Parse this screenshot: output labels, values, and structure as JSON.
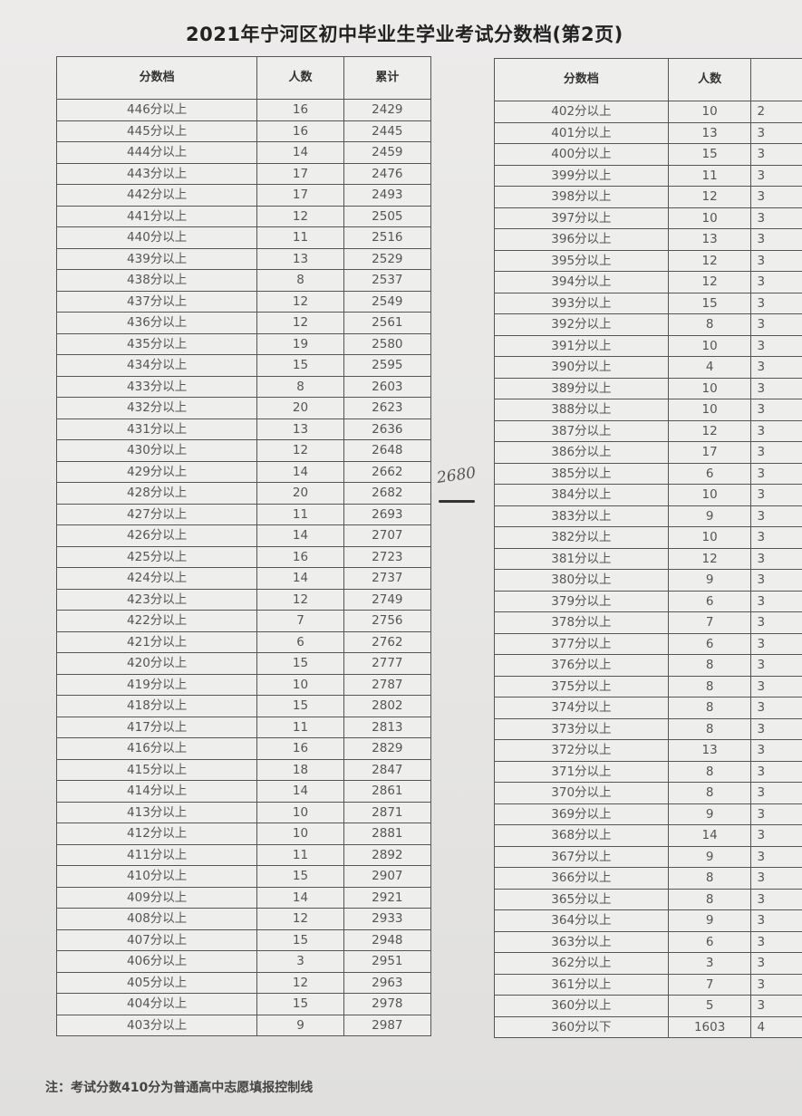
{
  "title": "2021年宁河区初中毕业生学业考试分数档(第2页)",
  "left_table": {
    "headers": [
      "分数档",
      "人数",
      "累计"
    ],
    "rows": [
      [
        "446分以上",
        "16",
        "2429"
      ],
      [
        "445分以上",
        "16",
        "2445"
      ],
      [
        "444分以上",
        "14",
        "2459"
      ],
      [
        "443分以上",
        "17",
        "2476"
      ],
      [
        "442分以上",
        "17",
        "2493"
      ],
      [
        "441分以上",
        "12",
        "2505"
      ],
      [
        "440分以上",
        "11",
        "2516"
      ],
      [
        "439分以上",
        "13",
        "2529"
      ],
      [
        "438分以上",
        "8",
        "2537"
      ],
      [
        "437分以上",
        "12",
        "2549"
      ],
      [
        "436分以上",
        "12",
        "2561"
      ],
      [
        "435分以上",
        "19",
        "2580"
      ],
      [
        "434分以上",
        "15",
        "2595"
      ],
      [
        "433分以上",
        "8",
        "2603"
      ],
      [
        "432分以上",
        "20",
        "2623"
      ],
      [
        "431分以上",
        "13",
        "2636"
      ],
      [
        "430分以上",
        "12",
        "2648"
      ],
      [
        "429分以上",
        "14",
        "2662"
      ],
      [
        "428分以上",
        "20",
        "2682"
      ],
      [
        "427分以上",
        "11",
        "2693"
      ],
      [
        "426分以上",
        "14",
        "2707"
      ],
      [
        "425分以上",
        "16",
        "2723"
      ],
      [
        "424分以上",
        "14",
        "2737"
      ],
      [
        "423分以上",
        "12",
        "2749"
      ],
      [
        "422分以上",
        "7",
        "2756"
      ],
      [
        "421分以上",
        "6",
        "2762"
      ],
      [
        "420分以上",
        "15",
        "2777"
      ],
      [
        "419分以上",
        "10",
        "2787"
      ],
      [
        "418分以上",
        "15",
        "2802"
      ],
      [
        "417分以上",
        "11",
        "2813"
      ],
      [
        "416分以上",
        "16",
        "2829"
      ],
      [
        "415分以上",
        "18",
        "2847"
      ],
      [
        "414分以上",
        "14",
        "2861"
      ],
      [
        "413分以上",
        "10",
        "2871"
      ],
      [
        "412分以上",
        "10",
        "2881"
      ],
      [
        "411分以上",
        "11",
        "2892"
      ],
      [
        "410分以上",
        "15",
        "2907"
      ],
      [
        "409分以上",
        "14",
        "2921"
      ],
      [
        "408分以上",
        "12",
        "2933"
      ],
      [
        "407分以上",
        "15",
        "2948"
      ],
      [
        "406分以上",
        "3",
        "2951"
      ],
      [
        "405分以上",
        "12",
        "2963"
      ],
      [
        "404分以上",
        "15",
        "2978"
      ],
      [
        "403分以上",
        "9",
        "2987"
      ]
    ]
  },
  "right_table": {
    "headers": [
      "分数档",
      "人数",
      ""
    ],
    "rows": [
      [
        "402分以上",
        "10",
        "2"
      ],
      [
        "401分以上",
        "13",
        "3"
      ],
      [
        "400分以上",
        "15",
        "3"
      ],
      [
        "399分以上",
        "11",
        "3"
      ],
      [
        "398分以上",
        "12",
        "3"
      ],
      [
        "397分以上",
        "10",
        "3"
      ],
      [
        "396分以上",
        "13",
        "3"
      ],
      [
        "395分以上",
        "12",
        "3"
      ],
      [
        "394分以上",
        "12",
        "3"
      ],
      [
        "393分以上",
        "15",
        "3"
      ],
      [
        "392分以上",
        "8",
        "3"
      ],
      [
        "391分以上",
        "10",
        "3"
      ],
      [
        "390分以上",
        "4",
        "3"
      ],
      [
        "389分以上",
        "10",
        "3"
      ],
      [
        "388分以上",
        "10",
        "3"
      ],
      [
        "387分以上",
        "12",
        "3"
      ],
      [
        "386分以上",
        "17",
        "3"
      ],
      [
        "385分以上",
        "6",
        "3"
      ],
      [
        "384分以上",
        "10",
        "3"
      ],
      [
        "383分以上",
        "9",
        "3"
      ],
      [
        "382分以上",
        "10",
        "3"
      ],
      [
        "381分以上",
        "12",
        "3"
      ],
      [
        "380分以上",
        "9",
        "3"
      ],
      [
        "379分以上",
        "6",
        "3"
      ],
      [
        "378分以上",
        "7",
        "3"
      ],
      [
        "377分以上",
        "6",
        "3"
      ],
      [
        "376分以上",
        "8",
        "3"
      ],
      [
        "375分以上",
        "8",
        "3"
      ],
      [
        "374分以上",
        "8",
        "3"
      ],
      [
        "373分以上",
        "8",
        "3"
      ],
      [
        "372分以上",
        "13",
        "3"
      ],
      [
        "371分以上",
        "8",
        "3"
      ],
      [
        "370分以上",
        "8",
        "3"
      ],
      [
        "369分以上",
        "9",
        "3"
      ],
      [
        "368分以上",
        "14",
        "3"
      ],
      [
        "367分以上",
        "9",
        "3"
      ],
      [
        "366分以上",
        "8",
        "3"
      ],
      [
        "365分以上",
        "8",
        "3"
      ],
      [
        "364分以上",
        "9",
        "3"
      ],
      [
        "363分以上",
        "6",
        "3"
      ],
      [
        "362分以上",
        "3",
        "3"
      ],
      [
        "361分以上",
        "7",
        "3"
      ],
      [
        "360分以上",
        "5",
        "3"
      ],
      [
        "360分以下",
        "1603",
        "4"
      ]
    ]
  },
  "handwritten_note": "2680",
  "footnote": "注：考试分数410分为普通高中志愿填报控制线"
}
